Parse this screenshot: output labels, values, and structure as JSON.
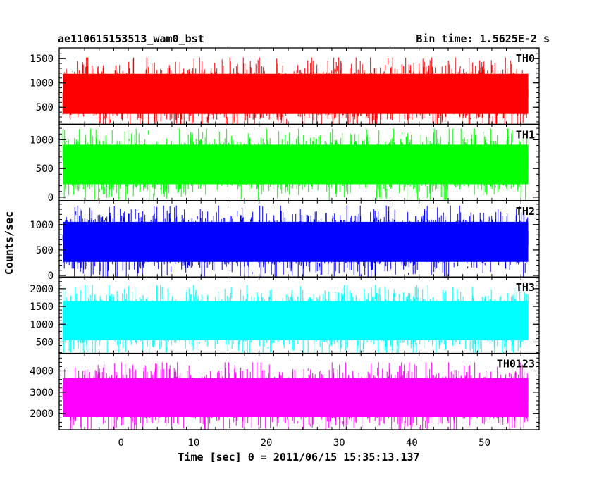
{
  "header": {
    "left": "ae110615153513_wam0_bst",
    "right": "Bin time: 1.5625E-2 s"
  },
  "chart_data": {
    "type": "line",
    "xlabel": "Time [sec] 0 = 2011/06/15 15:35:13.137",
    "ylabel": "Counts/sec",
    "xlim": [
      -8.5,
      57.5
    ],
    "x_range": [
      -8,
      56
    ],
    "x_ticks": [
      0,
      10,
      20,
      30,
      40,
      50
    ],
    "panels": [
      {
        "name": "TH0",
        "color": "#ff0000",
        "ylim": [
          150,
          1720
        ],
        "ticks": [
          500,
          1000,
          1500
        ],
        "lo": 200,
        "hi": 1700,
        "center": 775
      },
      {
        "name": "TH1",
        "color": "#00ff00",
        "ylim": [
          -60,
          1270
        ],
        "ticks": [
          0,
          500,
          1000
        ],
        "lo": 0,
        "hi": 1250,
        "center": 570
      },
      {
        "name": "TH2",
        "color": "#0000ff",
        "ylim": [
          -30,
          1470
        ],
        "ticks": [
          0,
          500,
          1000
        ],
        "lo": 0,
        "hi": 1430,
        "center": 660
      },
      {
        "name": "TH3",
        "color": "#00ffff",
        "ylim": [
          180,
          2330
        ],
        "ticks": [
          500,
          1000,
          1500,
          2000
        ],
        "lo": 300,
        "hi": 2300,
        "center": 1100
      },
      {
        "name": "TH0123",
        "color": "#ff00ff",
        "ylim": [
          1250,
          4820
        ],
        "ticks": [
          2000,
          3000,
          4000
        ],
        "lo": 1400,
        "hi": 4700,
        "center": 2750
      }
    ]
  }
}
